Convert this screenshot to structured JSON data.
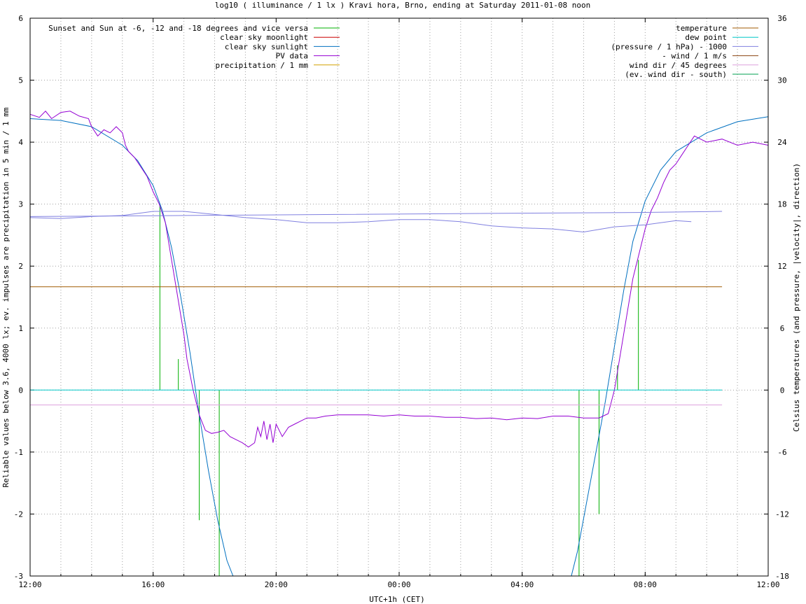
{
  "chart_data": {
    "type": "line",
    "title": "log10 ( illuminance / 1 lx ) Kravi hora, Brno, ending at Saturday 2011-01-08 noon",
    "xlabel": "UTC+1h (CET)",
    "ylabel": "Reliable values below 3.6, 4000 lx; ev. impulses are precipitation in 5 min / 1 mm",
    "y2label": "Celsius temperatures (and pressure, |velocity|, direction)",
    "x_unit": "hours since 2011-01-07 12:00 (CET)",
    "xlim": [
      0,
      24
    ],
    "ylim": [
      -3,
      6
    ],
    "y2lim": [
      -18,
      36
    ],
    "x_ticks": [
      {
        "v": 0,
        "label": "12:00"
      },
      {
        "v": 4,
        "label": "16:00"
      },
      {
        "v": 8,
        "label": "20:00"
      },
      {
        "v": 12,
        "label": "00:00"
      },
      {
        "v": 16,
        "label": "04:00"
      },
      {
        "v": 20,
        "label": "08:00"
      },
      {
        "v": 24,
        "label": "12:00"
      }
    ],
    "y_ticks": [
      -3,
      -2,
      -1,
      0,
      1,
      2,
      3,
      4,
      5,
      6
    ],
    "y2_ticks": [
      -18,
      -12,
      -6,
      0,
      6,
      12,
      18,
      24,
      30,
      36
    ],
    "grid": true,
    "legend_left": "top-left",
    "legend_right": "top-right",
    "series": [
      {
        "name": "Sunset and Sun at -6, -12 and -18 degrees and vice versa",
        "axis": "y",
        "color": "#00b000",
        "kind": "impulse",
        "impulses": [
          [
            4.22,
            3.0
          ],
          [
            4.82,
            0.5
          ],
          [
            5.5,
            -2.1
          ],
          [
            6.15,
            -3.0
          ],
          [
            17.85,
            -3.0
          ],
          [
            18.5,
            -2.0
          ],
          [
            19.1,
            0.4
          ],
          [
            19.78,
            2.1
          ]
        ]
      },
      {
        "name": "clear sky moonlight",
        "axis": "y",
        "color": "#cc0000",
        "points": []
      },
      {
        "name": "clear sky sunlight",
        "axis": "y",
        "color": "#0070c0",
        "points": [
          [
            0,
            4.38
          ],
          [
            1,
            4.35
          ],
          [
            2,
            4.25
          ],
          [
            3,
            3.95
          ],
          [
            3.5,
            3.7
          ],
          [
            4,
            3.3
          ],
          [
            4.3,
            2.9
          ],
          [
            4.6,
            2.3
          ],
          [
            4.9,
            1.5
          ],
          [
            5.2,
            0.6
          ],
          [
            5.5,
            -0.4
          ],
          [
            5.8,
            -1.3
          ],
          [
            6.1,
            -2.1
          ],
          [
            6.4,
            -2.75
          ],
          [
            6.6,
            -3.0
          ],
          [
            17.6,
            -3.0
          ],
          [
            17.8,
            -2.6
          ],
          [
            18.1,
            -1.8
          ],
          [
            18.4,
            -1.0
          ],
          [
            18.7,
            -0.2
          ],
          [
            19.0,
            0.7
          ],
          [
            19.3,
            1.6
          ],
          [
            19.6,
            2.4
          ],
          [
            20.0,
            3.05
          ],
          [
            20.5,
            3.55
          ],
          [
            21.0,
            3.85
          ],
          [
            22.0,
            4.15
          ],
          [
            23.0,
            4.33
          ],
          [
            24.0,
            4.41
          ]
        ]
      },
      {
        "name": "PV data",
        "axis": "y",
        "color": "#9400d3",
        "points": [
          [
            0,
            4.45
          ],
          [
            0.3,
            4.4
          ],
          [
            0.5,
            4.5
          ],
          [
            0.7,
            4.38
          ],
          [
            1.0,
            4.48
          ],
          [
            1.3,
            4.5
          ],
          [
            1.6,
            4.42
          ],
          [
            1.9,
            4.38
          ],
          [
            2.0,
            4.25
          ],
          [
            2.2,
            4.1
          ],
          [
            2.4,
            4.2
          ],
          [
            2.6,
            4.15
          ],
          [
            2.8,
            4.25
          ],
          [
            3.0,
            4.15
          ],
          [
            3.1,
            3.95
          ],
          [
            3.2,
            3.85
          ],
          [
            3.4,
            3.75
          ],
          [
            3.6,
            3.6
          ],
          [
            3.8,
            3.45
          ],
          [
            4.0,
            3.2
          ],
          [
            4.2,
            3.0
          ],
          [
            4.4,
            2.7
          ],
          [
            4.5,
            2.4
          ],
          [
            4.6,
            2.1
          ],
          [
            4.8,
            1.5
          ],
          [
            5.0,
            0.9
          ],
          [
            5.1,
            0.5
          ],
          [
            5.3,
            0.0
          ],
          [
            5.5,
            -0.4
          ],
          [
            5.7,
            -0.65
          ],
          [
            5.9,
            -0.7
          ],
          [
            6.1,
            -0.68
          ],
          [
            6.3,
            -0.65
          ],
          [
            6.5,
            -0.75
          ],
          [
            6.7,
            -0.8
          ],
          [
            6.9,
            -0.85
          ],
          [
            7.1,
            -0.92
          ],
          [
            7.3,
            -0.85
          ],
          [
            7.4,
            -0.6
          ],
          [
            7.5,
            -0.75
          ],
          [
            7.6,
            -0.5
          ],
          [
            7.7,
            -0.8
          ],
          [
            7.8,
            -0.55
          ],
          [
            7.9,
            -0.85
          ],
          [
            8.0,
            -0.55
          ],
          [
            8.2,
            -0.75
          ],
          [
            8.4,
            -0.6
          ],
          [
            8.6,
            -0.55
          ],
          [
            8.8,
            -0.5
          ],
          [
            9.0,
            -0.45
          ],
          [
            9.3,
            -0.45
          ],
          [
            9.6,
            -0.42
          ],
          [
            10.0,
            -0.4
          ],
          [
            10.5,
            -0.4
          ],
          [
            11.0,
            -0.4
          ],
          [
            11.5,
            -0.42
          ],
          [
            12.0,
            -0.4
          ],
          [
            12.5,
            -0.42
          ],
          [
            13.0,
            -0.42
          ],
          [
            13.5,
            -0.44
          ],
          [
            14.0,
            -0.44
          ],
          [
            14.5,
            -0.46
          ],
          [
            15.0,
            -0.45
          ],
          [
            15.5,
            -0.48
          ],
          [
            16.0,
            -0.45
          ],
          [
            16.5,
            -0.46
          ],
          [
            17.0,
            -0.42
          ],
          [
            17.5,
            -0.42
          ],
          [
            18.0,
            -0.45
          ],
          [
            18.5,
            -0.45
          ],
          [
            18.8,
            -0.38
          ],
          [
            19.0,
            0.0
          ],
          [
            19.2,
            0.6
          ],
          [
            19.4,
            1.2
          ],
          [
            19.6,
            1.8
          ],
          [
            19.8,
            2.2
          ],
          [
            20.0,
            2.6
          ],
          [
            20.2,
            2.9
          ],
          [
            20.4,
            3.1
          ],
          [
            20.6,
            3.35
          ],
          [
            20.8,
            3.55
          ],
          [
            21.0,
            3.65
          ],
          [
            21.2,
            3.8
          ],
          [
            21.4,
            3.95
          ],
          [
            21.6,
            4.1
          ],
          [
            21.8,
            4.05
          ],
          [
            22.0,
            4.0
          ],
          [
            22.5,
            4.05
          ],
          [
            23.0,
            3.95
          ],
          [
            23.5,
            4.0
          ],
          [
            24.0,
            3.95
          ]
        ]
      },
      {
        "name": "precipitation / 1 mm",
        "axis": "y",
        "color": "#d4a000",
        "points": []
      },
      {
        "name": "temperature",
        "axis": "y2",
        "color": "#a05a00",
        "points": [
          [
            0,
            10.0
          ],
          [
            22.5,
            10.0
          ]
        ]
      },
      {
        "name": "dew point",
        "axis": "y2",
        "color": "#00c8c8",
        "points": [
          [
            0,
            0.0
          ],
          [
            22.5,
            0.0
          ]
        ]
      },
      {
        "name": "(pressure / 1 hPa) - 1000",
        "axis": "y2",
        "color": "#8080e0",
        "points": [
          [
            0,
            16.7
          ],
          [
            1,
            16.6
          ],
          [
            2,
            16.8
          ],
          [
            3,
            16.9
          ],
          [
            4,
            17.3
          ],
          [
            5,
            17.3
          ],
          [
            6,
            17.0
          ],
          [
            7,
            16.7
          ],
          [
            8,
            16.5
          ],
          [
            9,
            16.2
          ],
          [
            10,
            16.2
          ],
          [
            11,
            16.3
          ],
          [
            12,
            16.5
          ],
          [
            13,
            16.5
          ],
          [
            14,
            16.3
          ],
          [
            15,
            15.9
          ],
          [
            16,
            15.7
          ],
          [
            17,
            15.6
          ],
          [
            18,
            15.3
          ],
          [
            19,
            15.8
          ],
          [
            20,
            16.0
          ],
          [
            21,
            16.4
          ],
          [
            21.5,
            16.3
          ]
        ]
      },
      {
        "name": "- wind / 1 m/s",
        "axis": "y2",
        "color": "#8b4513",
        "points": []
      },
      {
        "name": "wind dir / 45 degrees",
        "axis": "y",
        "color": "#dda0dd",
        "points": [
          [
            0,
            -0.24
          ],
          [
            22.5,
            -0.24
          ]
        ]
      },
      {
        "name": "(ev. wind dir - south)",
        "axis": "y",
        "color": "#00a050",
        "points": []
      },
      {
        "name": "",
        "axis": "y2",
        "color": "#8080e0",
        "points": [
          [
            0,
            16.8
          ],
          [
            5,
            16.9
          ],
          [
            10,
            17.0
          ],
          [
            15,
            17.1
          ],
          [
            20,
            17.2
          ],
          [
            22.5,
            17.3
          ]
        ]
      }
    ]
  }
}
